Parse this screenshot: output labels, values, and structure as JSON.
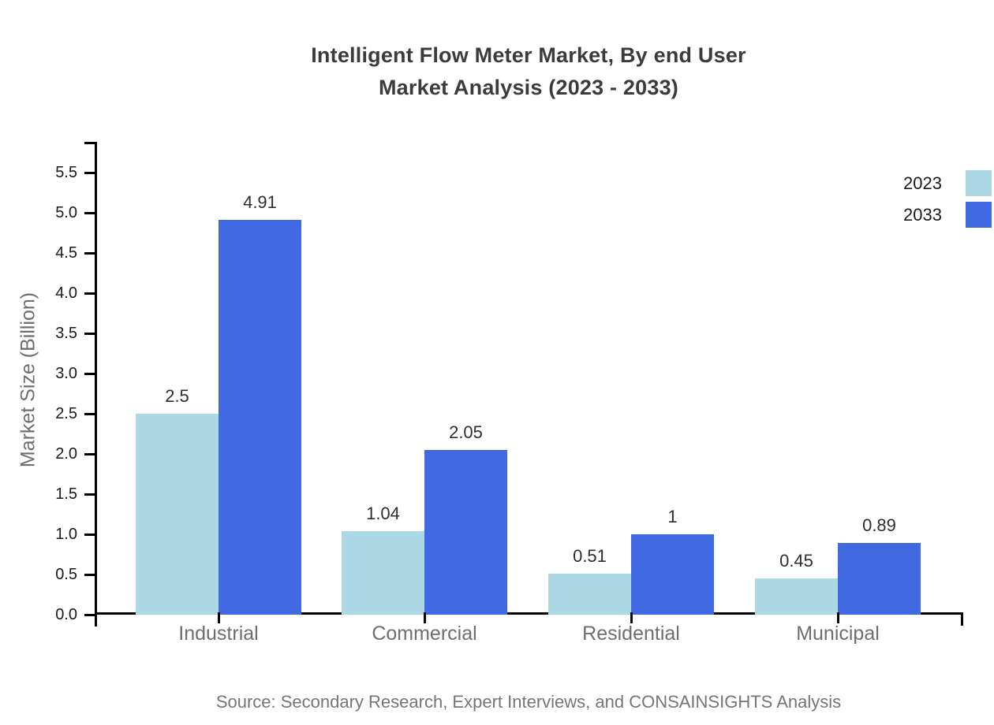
{
  "title": {
    "line1": "Intelligent Flow Meter Market, By end User",
    "line2": "Market Analysis (2023 - 2033)"
  },
  "source": "Source: Secondary Research, Expert Interviews, and CONSAINSIGHTS Analysis",
  "colors": {
    "series_2023": "#ADD8E6",
    "series_2033": "#4169E1",
    "title_text": "#3B3B3B",
    "axis_label_text": "#6E6E6E",
    "tick_label_text": "#1A1A1A",
    "value_label_text": "#2E2E2E",
    "axis_line": "#000000",
    "source_text": "#757575"
  },
  "legend": {
    "position": "top-right",
    "items": [
      {
        "label": "2023",
        "color": "#ADD8E6"
      },
      {
        "label": "2033",
        "color": "#4169E1"
      }
    ]
  },
  "chart_data": {
    "type": "bar",
    "title": "Intelligent Flow Meter Market, By end User Market Analysis (2023 - 2033)",
    "categories": [
      "Industrial",
      "Commercial",
      "Residential",
      "Municipal"
    ],
    "series": [
      {
        "name": "2023",
        "color": "#ADD8E6",
        "values": [
          2.5,
          1.04,
          0.51,
          0.45
        ],
        "value_labels": [
          "2.5",
          "1.04",
          "0.51",
          "0.45"
        ]
      },
      {
        "name": "2033",
        "color": "#4169E1",
        "values": [
          4.91,
          2.05,
          1,
          0.89
        ],
        "value_labels": [
          "4.91",
          "2.05",
          "1",
          "0.89"
        ]
      }
    ],
    "xlabel": "",
    "ylabel": "Market Size (Billion)",
    "ylim": [
      0,
      5.9
    ],
    "y_ticks": [
      0.0,
      0.5,
      1.0,
      1.5,
      2.0,
      2.5,
      3.0,
      3.5,
      4.0,
      4.5,
      5.0,
      5.5
    ],
    "y_tick_labels": [
      "0.0",
      "0.5",
      "1.0",
      "1.5",
      "2.0",
      "2.5",
      "3.0",
      "3.5",
      "4.0",
      "4.5",
      "5.0",
      "5.5"
    ],
    "grid": false,
    "bar_value_labels_shown": true,
    "legend_entries": [
      "2023",
      "2033"
    ]
  }
}
